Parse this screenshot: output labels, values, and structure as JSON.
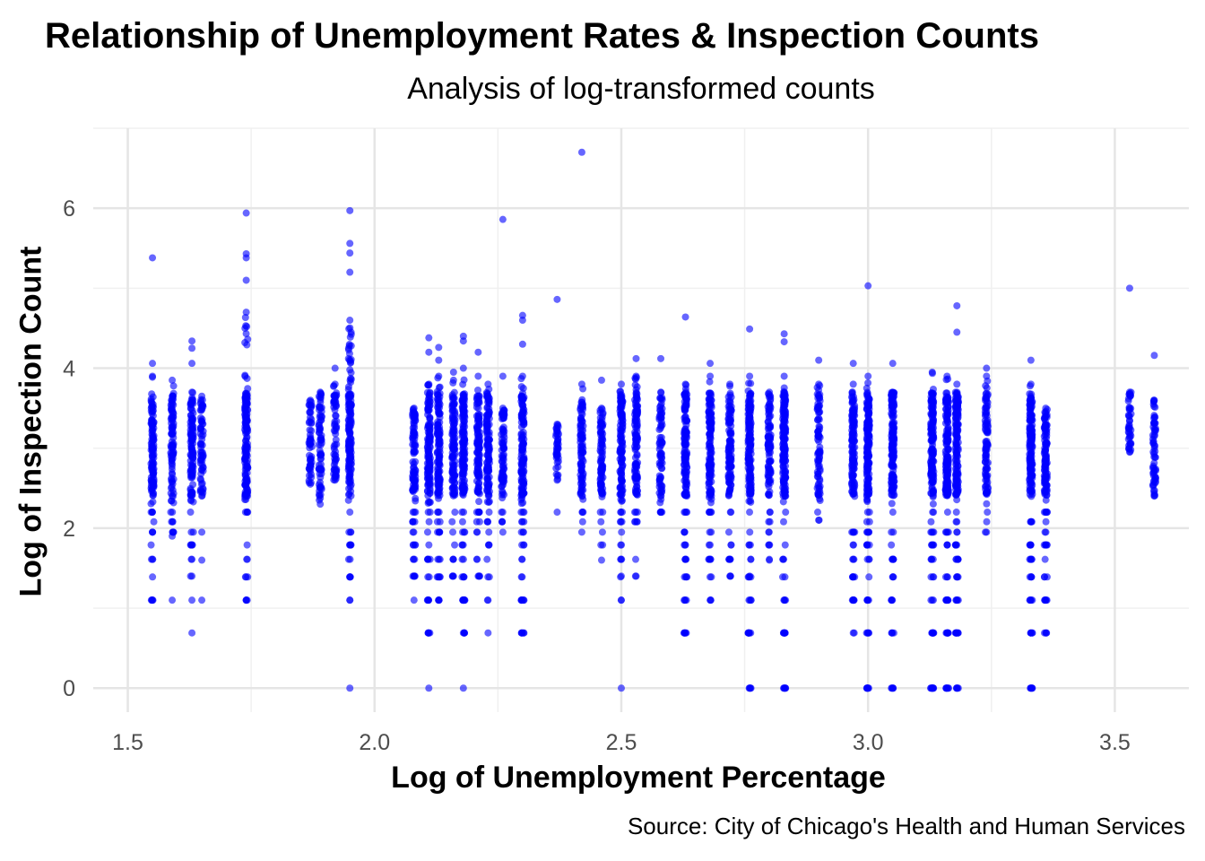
{
  "chart_data": {
    "type": "scatter",
    "title": "Relationship of Unemployment Rates & Inspection Counts",
    "subtitle": "Analysis of log-transformed counts",
    "caption": "Source: City of Chicago's Health and Human Services",
    "xlabel": "Log of Unemployment Percentage",
    "ylabel": "Log of Inspection Count",
    "xlim": [
      1.43,
      3.65
    ],
    "ylim": [
      -0.3,
      7.0
    ],
    "x_ticks": [
      1.5,
      2.0,
      2.5,
      3.0,
      3.5
    ],
    "x_tick_labels": [
      "1.5",
      "2.0",
      "2.5",
      "3.0",
      "3.5"
    ],
    "y_ticks": [
      0,
      2,
      4,
      6
    ],
    "y_tick_labels": [
      "0",
      "2",
      "4",
      "6"
    ],
    "grid": true,
    "point_color": "#0000ff",
    "point_opacity": 0.6,
    "columns": [
      {
        "x": 1.55,
        "top": 3.9,
        "bot": 1.1,
        "outliers": [
          4.06,
          5.38
        ]
      },
      {
        "x": 1.59,
        "top": 3.85,
        "bot": 1.9,
        "outliers": [
          1.1
        ]
      },
      {
        "x": 1.63,
        "top": 3.7,
        "bot": 1.4,
        "outliers": [
          0.69,
          1.1,
          4.06,
          4.25,
          4.34
        ]
      },
      {
        "x": 1.65,
        "top": 3.65,
        "bot": 2.4,
        "outliers": [
          1.6,
          1.1,
          1.95
        ]
      },
      {
        "x": 1.74,
        "top": 4.7,
        "bot": 1.1,
        "outliers": [
          5.1,
          5.38,
          5.43,
          5.94
        ]
      },
      {
        "x": 1.87,
        "top": 3.6,
        "bot": 2.55,
        "outliers": []
      },
      {
        "x": 1.89,
        "top": 3.7,
        "bot": 2.3,
        "outliers": []
      },
      {
        "x": 1.92,
        "top": 3.8,
        "bot": 2.6,
        "outliers": [
          4.0
        ]
      },
      {
        "x": 1.95,
        "top": 4.6,
        "bot": 1.1,
        "outliers": [
          0.0,
          5.2,
          5.44,
          5.56,
          5.97
        ]
      },
      {
        "x": 2.08,
        "top": 3.5,
        "bot": 1.4,
        "outliers": [
          1.1
        ]
      },
      {
        "x": 2.11,
        "top": 3.8,
        "bot": 0.69,
        "outliers": [
          0.0,
          4.2,
          4.38
        ]
      },
      {
        "x": 2.13,
        "top": 3.9,
        "bot": 1.1,
        "outliers": [
          4.1,
          4.26
        ]
      },
      {
        "x": 2.16,
        "top": 3.85,
        "bot": 1.4,
        "outliers": [
          3.95
        ]
      },
      {
        "x": 2.18,
        "top": 4.0,
        "bot": 0.69,
        "outliers": [
          0.0,
          4.4,
          4.34
        ]
      },
      {
        "x": 2.21,
        "top": 3.9,
        "bot": 1.4,
        "outliers": [
          4.2
        ]
      },
      {
        "x": 2.23,
        "top": 3.8,
        "bot": 1.1,
        "outliers": [
          0.69
        ]
      },
      {
        "x": 2.26,
        "top": 3.5,
        "bot": 1.95,
        "outliers": [
          5.86,
          3.9
        ]
      },
      {
        "x": 2.3,
        "top": 3.9,
        "bot": 0.69,
        "outliers": [
          4.3,
          4.6,
          4.66
        ]
      },
      {
        "x": 2.37,
        "top": 3.3,
        "bot": 2.6,
        "outliers": [
          2.2,
          4.86
        ]
      },
      {
        "x": 2.42,
        "top": 3.8,
        "bot": 1.95,
        "outliers": [
          6.7
        ]
      },
      {
        "x": 2.46,
        "top": 3.5,
        "bot": 1.6,
        "outliers": [
          3.85
        ]
      },
      {
        "x": 2.5,
        "top": 3.8,
        "bot": 1.1,
        "outliers": [
          0.0,
          1.4
        ]
      },
      {
        "x": 2.53,
        "top": 3.9,
        "bot": 1.4,
        "outliers": [
          4.12
        ]
      },
      {
        "x": 2.58,
        "top": 3.7,
        "bot": 2.2,
        "outliers": [
          4.12
        ]
      },
      {
        "x": 2.63,
        "top": 3.8,
        "bot": 0.69,
        "outliers": [
          4.64
        ]
      },
      {
        "x": 2.68,
        "top": 3.9,
        "bot": 1.1,
        "outliers": [
          4.06
        ]
      },
      {
        "x": 2.72,
        "top": 3.8,
        "bot": 1.4,
        "outliers": []
      },
      {
        "x": 2.76,
        "top": 3.9,
        "bot": 0.0,
        "outliers": [
          4.49,
          1.4
        ]
      },
      {
        "x": 2.8,
        "top": 3.7,
        "bot": 1.6,
        "outliers": []
      },
      {
        "x": 2.83,
        "top": 3.9,
        "bot": 0.0,
        "outliers": [
          4.43,
          4.33
        ]
      },
      {
        "x": 2.9,
        "top": 3.8,
        "bot": 2.1,
        "outliers": [
          4.1
        ]
      },
      {
        "x": 2.97,
        "top": 3.8,
        "bot": 0.69,
        "outliers": [
          4.06,
          1.1
        ]
      },
      {
        "x": 3.0,
        "top": 3.9,
        "bot": 0.0,
        "outliers": [
          5.03
        ]
      },
      {
        "x": 3.05,
        "top": 3.7,
        "bot": 0.0,
        "outliers": [
          4.06
        ]
      },
      {
        "x": 3.13,
        "top": 3.95,
        "bot": 0.0,
        "outliers": [
          1.1
        ]
      },
      {
        "x": 3.16,
        "top": 3.9,
        "bot": 0.0,
        "outliers": []
      },
      {
        "x": 3.18,
        "top": 3.8,
        "bot": 0.0,
        "outliers": [
          4.78,
          4.45
        ]
      },
      {
        "x": 3.24,
        "top": 3.9,
        "bot": 1.95,
        "outliers": [
          4.0
        ]
      },
      {
        "x": 3.33,
        "top": 3.8,
        "bot": 0.0,
        "outliers": [
          4.1
        ]
      },
      {
        "x": 3.36,
        "top": 3.5,
        "bot": 0.69,
        "outliers": []
      },
      {
        "x": 3.53,
        "top": 3.7,
        "bot": 2.95,
        "outliers": [
          5.0
        ]
      },
      {
        "x": 3.58,
        "top": 3.6,
        "bot": 2.4,
        "outliers": [
          4.16
        ]
      }
    ]
  }
}
